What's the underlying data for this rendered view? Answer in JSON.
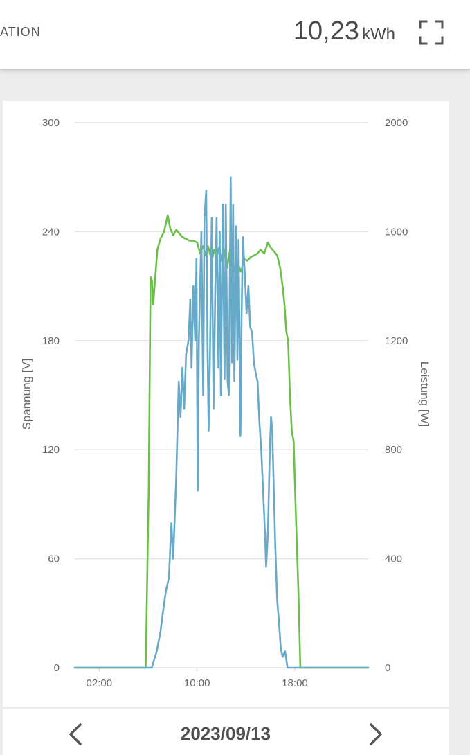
{
  "header": {
    "title": "ATION",
    "energy_value": "10,23",
    "energy_unit": "kWh",
    "fullscreen_icon": "fullscreen-icon"
  },
  "footer": {
    "date": "2023/09/13",
    "prev_icon": "chevron-left-icon",
    "next_icon": "chevron-right-icon"
  },
  "chart_data": {
    "type": "line",
    "title": "",
    "xlabel": "",
    "ylabel_left": "Spannung [V]",
    "ylabel_right": "Leistung [W]",
    "x_ticks": [
      "02:00",
      "10:00",
      "18:00"
    ],
    "x_range_hours": [
      0,
      24
    ],
    "y_left_ticks": [
      "0",
      "60",
      "120",
      "180",
      "240",
      "300"
    ],
    "y_right_ticks": [
      "0",
      "400",
      "800",
      "1200",
      "1600",
      "2000"
    ],
    "y_left_range": [
      0,
      300
    ],
    "y_right_range": [
      0,
      2000
    ],
    "grid": true,
    "series": [
      {
        "axis": "left",
        "color": "#6abf4b",
        "points": [
          [
            0,
            0
          ],
          [
            5.8,
            0
          ],
          [
            6.05,
            100
          ],
          [
            6.2,
            215
          ],
          [
            6.32,
            213
          ],
          [
            6.42,
            200
          ],
          [
            6.55,
            212
          ],
          [
            6.75,
            230
          ],
          [
            7.0,
            236
          ],
          [
            7.3,
            240
          ],
          [
            7.6,
            249
          ],
          [
            7.8,
            242
          ],
          [
            8.05,
            238
          ],
          [
            8.3,
            241
          ],
          [
            8.55,
            239
          ],
          [
            8.8,
            237
          ],
          [
            9.1,
            236
          ],
          [
            9.4,
            235
          ],
          [
            9.7,
            235
          ],
          [
            10.0,
            234
          ],
          [
            10.25,
            228
          ],
          [
            10.5,
            232
          ],
          [
            10.7,
            227
          ],
          [
            10.9,
            232
          ],
          [
            11.2,
            224
          ],
          [
            11.4,
            230
          ],
          [
            11.6,
            226
          ],
          [
            11.8,
            231
          ],
          [
            12.0,
            224
          ],
          [
            12.2,
            230
          ],
          [
            12.45,
            220
          ],
          [
            12.7,
            230
          ],
          [
            12.9,
            225
          ],
          [
            13.1,
            218
          ],
          [
            13.35,
            222
          ],
          [
            13.6,
            218
          ],
          [
            13.85,
            225
          ],
          [
            14.1,
            224
          ],
          [
            14.4,
            226
          ],
          [
            14.7,
            227
          ],
          [
            14.95,
            228
          ],
          [
            15.2,
            230
          ],
          [
            15.5,
            228
          ],
          [
            15.8,
            234
          ],
          [
            16.05,
            231
          ],
          [
            16.3,
            229
          ],
          [
            16.55,
            227
          ],
          [
            16.8,
            220
          ],
          [
            17.0,
            210
          ],
          [
            17.15,
            200
          ],
          [
            17.3,
            185
          ],
          [
            17.45,
            180
          ],
          [
            17.6,
            150
          ],
          [
            17.75,
            130
          ],
          [
            17.9,
            125
          ],
          [
            18.1,
            80
          ],
          [
            18.3,
            40
          ],
          [
            18.45,
            0
          ],
          [
            24,
            0
          ]
        ]
      },
      {
        "axis": "right",
        "color": "#67a9c9",
        "points": [
          [
            0,
            0
          ],
          [
            6.3,
            0
          ],
          [
            6.7,
            60
          ],
          [
            7.0,
            130
          ],
          [
            7.2,
            200
          ],
          [
            7.45,
            280
          ],
          [
            7.7,
            330
          ],
          [
            7.9,
            530
          ],
          [
            8.05,
            400
          ],
          [
            8.3,
            700
          ],
          [
            8.5,
            1050
          ],
          [
            8.65,
            920
          ],
          [
            8.8,
            1100
          ],
          [
            8.95,
            950
          ],
          [
            9.1,
            1150
          ],
          [
            9.3,
            1200
          ],
          [
            9.45,
            1350
          ],
          [
            9.55,
            1100
          ],
          [
            9.7,
            1400
          ],
          [
            9.85,
            1200
          ],
          [
            9.95,
            1500
          ],
          [
            10.05,
            650
          ],
          [
            10.15,
            1200
          ],
          [
            10.35,
            1600
          ],
          [
            10.5,
            1000
          ],
          [
            10.6,
            1650
          ],
          [
            10.75,
            1750
          ],
          [
            10.85,
            1200
          ],
          [
            10.95,
            870
          ],
          [
            11.05,
            1120
          ],
          [
            11.2,
            1650
          ],
          [
            11.35,
            950
          ],
          [
            11.5,
            1420
          ],
          [
            11.6,
            1650
          ],
          [
            11.75,
            1100
          ],
          [
            11.85,
            1600
          ],
          [
            11.95,
            1000
          ],
          [
            12.1,
            1700
          ],
          [
            12.25,
            1060
          ],
          [
            12.35,
            1700
          ],
          [
            12.5,
            1050
          ],
          [
            12.6,
            1000
          ],
          [
            12.75,
            1800
          ],
          [
            12.85,
            1120
          ],
          [
            12.95,
            1700
          ],
          [
            13.05,
            1050
          ],
          [
            13.2,
            1620
          ],
          [
            13.3,
            1130
          ],
          [
            13.4,
            1570
          ],
          [
            13.55,
            850
          ],
          [
            13.65,
            1300
          ],
          [
            13.75,
            1580
          ],
          [
            13.9,
            1450
          ],
          [
            14.05,
            1300
          ],
          [
            14.2,
            1400
          ],
          [
            14.35,
            1250
          ],
          [
            14.5,
            1230
          ],
          [
            14.65,
            1120
          ],
          [
            14.8,
            1080
          ],
          [
            14.95,
            1050
          ],
          [
            15.1,
            900
          ],
          [
            15.25,
            800
          ],
          [
            15.4,
            650
          ],
          [
            15.55,
            500
          ],
          [
            15.65,
            370
          ],
          [
            15.8,
            500
          ],
          [
            15.95,
            800
          ],
          [
            16.05,
            920
          ],
          [
            16.15,
            870
          ],
          [
            16.25,
            700
          ],
          [
            16.4,
            450
          ],
          [
            16.55,
            250
          ],
          [
            16.7,
            170
          ],
          [
            16.85,
            70
          ],
          [
            17.0,
            40
          ],
          [
            17.2,
            60
          ],
          [
            17.4,
            0
          ],
          [
            24,
            0
          ]
        ]
      }
    ]
  }
}
